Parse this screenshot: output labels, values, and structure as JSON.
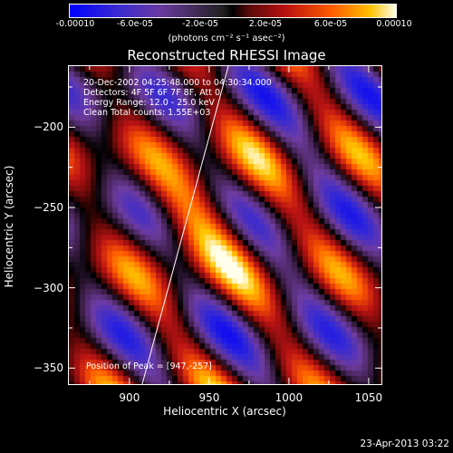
{
  "chart_data": {
    "type": "heatmap",
    "title": "Reconstructed RHESSI Image",
    "xlabel": "Heliocentric X (arcsec)",
    "ylabel": "Heliocentric Y (arcsec)",
    "xlim": [
      862,
      1058
    ],
    "ylim": [
      -360,
      -162
    ],
    "xticks": [
      "900",
      "950",
      "1000",
      "1050"
    ],
    "yticks": [
      "-200",
      "-250",
      "-300",
      "-350"
    ],
    "colorbar": {
      "range": [
        -0.0001,
        0.0001
      ],
      "tick_labels": [
        "-0.00010",
        "-6.0e-05",
        "-2.0e-05",
        "2.0e-05",
        "6.0e-05",
        "0.00010"
      ],
      "units": "(photons cm⁻² s⁻¹ asec⁻²)"
    },
    "info_lines": [
      "20-Dec-2002 04:25:48.000 to 04:30:34.000",
      "Detectors: 4F 5F 6F 7F 8F, Att 0",
      "Energy Range: 12.0 - 25.0 keV",
      "Clean     Total counts: 1.55E+03"
    ],
    "peak_label": "Position of Peak = [947,-257]",
    "peak": [
      947,
      -257
    ],
    "limb_line": [
      [
        908,
        -360
      ],
      [
        962,
        -162
      ]
    ]
  },
  "footer": "23-Apr-2013 03:22"
}
